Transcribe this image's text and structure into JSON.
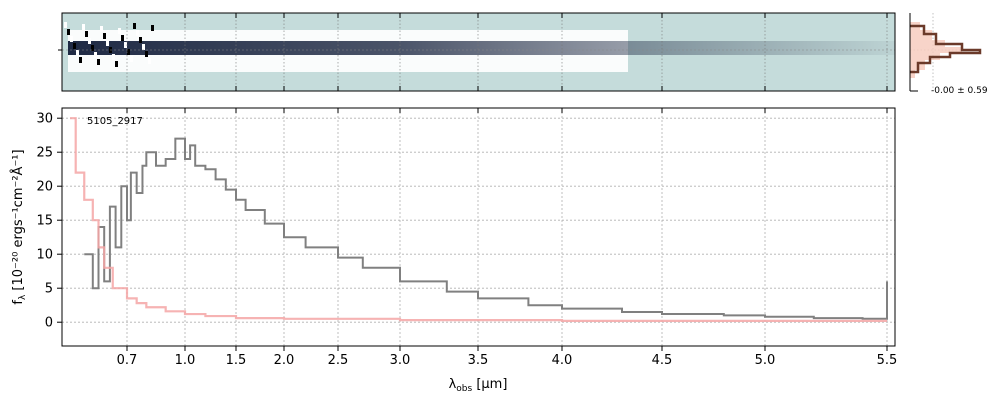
{
  "chart_data": [
    {
      "type": "heatmap",
      "title": "",
      "description_source": "2D spectrum cutout",
      "colors": {
        "background": "#c5dcdb",
        "trace_dark": "#1f2a44",
        "trace_light": "#ffffff"
      }
    },
    {
      "type": "line",
      "label": "-0.00 ± 0.59",
      "colors": {
        "histogram": "#6b3a2a",
        "fill": "#f6c9bc"
      }
    },
    {
      "type": "line",
      "title": "",
      "annotation": "5105_2917",
      "xlabel": "λ",
      "xlabel_sub": "obs",
      "xlabel_unit": " [μm]",
      "ylabel": "f",
      "ylabel_sub": "λ",
      "ylabel_unit": " [10⁻²⁰ ergs⁻¹cm⁻²Å⁻¹]",
      "xticks": [
        "0.7",
        "1.0",
        "1.5",
        "2.0",
        "2.5",
        "3.0",
        "3.5",
        "4.0",
        "4.5",
        "5.0",
        "5.5"
      ],
      "xtick_values": [
        0.7,
        1.0,
        1.5,
        2.0,
        2.5,
        3.0,
        3.5,
        4.0,
        4.5,
        5.0,
        5.5
      ],
      "yticks": [
        0,
        5,
        10,
        15,
        20,
        25,
        30
      ],
      "ylim": [
        -3.5,
        31.5
      ],
      "xlim": [
        0.5,
        5.52
      ],
      "grid": true,
      "x_scale": "sqrt-like",
      "series": [
        {
          "name": "",
          "color": "#808080",
          "x": [
            0.55,
            0.58,
            0.6,
            0.62,
            0.64,
            0.66,
            0.68,
            0.7,
            0.72,
            0.75,
            0.78,
            0.8,
            0.85,
            0.9,
            0.95,
            1.0,
            1.05,
            1.1,
            1.2,
            1.3,
            1.4,
            1.5,
            1.6,
            1.8,
            2.0,
            2.2,
            2.5,
            2.7,
            3.0,
            3.3,
            3.5,
            3.8,
            4.0,
            4.3,
            4.5,
            4.8,
            5.0,
            5.2,
            5.4,
            5.5
          ],
          "y": [
            10,
            5,
            14,
            6,
            17,
            11,
            20,
            15,
            22,
            19,
            23,
            25,
            23,
            24,
            27,
            24,
            26,
            23,
            22.5,
            21,
            19.5,
            18,
            16.5,
            14.5,
            12.5,
            11,
            9.5,
            8,
            6,
            4.5,
            3.5,
            2.5,
            2,
            1.5,
            1.2,
            1,
            0.8,
            0.6,
            0.5,
            6
          ]
        },
        {
          "name": "",
          "color": "#f4a6a6",
          "x": [
            0.5,
            0.52,
            0.55,
            0.58,
            0.6,
            0.62,
            0.65,
            0.7,
            0.75,
            0.8,
            0.9,
            1.0,
            1.2,
            1.5,
            2.0,
            3.0,
            4.0,
            5.0,
            5.5
          ],
          "y": [
            30,
            22,
            18,
            15,
            11,
            8,
            5,
            3.5,
            2.8,
            2.2,
            1.6,
            1.2,
            0.9,
            0.6,
            0.5,
            0.3,
            0.2,
            0.2,
            0.2
          ]
        }
      ]
    }
  ]
}
